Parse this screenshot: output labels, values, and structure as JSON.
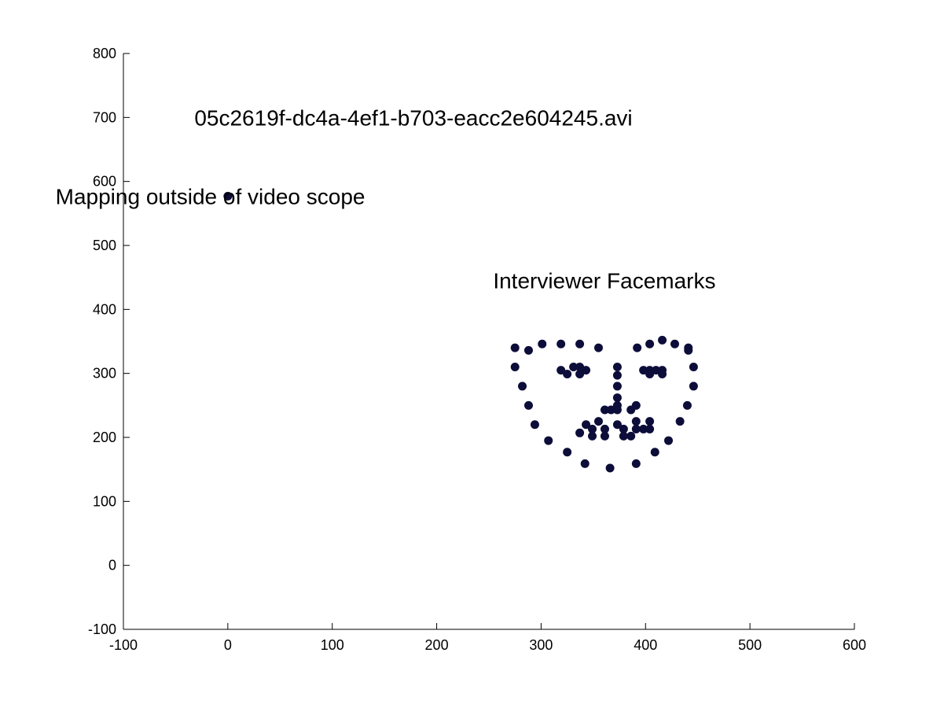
{
  "chart_data": {
    "type": "scatter",
    "title": "",
    "xlabel": "",
    "ylabel": "",
    "xlim": [
      -100,
      600
    ],
    "ylim": [
      -100,
      800
    ],
    "xticks": [
      -100,
      0,
      100,
      200,
      300,
      400,
      500,
      600
    ],
    "yticks": [
      -100,
      0,
      100,
      200,
      300,
      400,
      500,
      600,
      700,
      800
    ],
    "grid": false,
    "box": "left-bottom",
    "colors": {
      "marker": "#0d0d3a",
      "axis": "#000000",
      "background": "#ffffff"
    },
    "annotations": [
      {
        "key": "filename",
        "text": "05c2619f-dc4a-4ef1-b703-eacc2e604245.avi",
        "x": -32,
        "y": 700
      },
      {
        "key": "outside",
        "text": "Mapping outside of video scope",
        "x": -165,
        "y": 577
      },
      {
        "key": "facemarks",
        "text": "Interviewer Facemarks",
        "x": 254,
        "y": 445
      }
    ],
    "series": [
      {
        "points": [
          [
            0,
            577
          ],
          [
            275,
            340
          ],
          [
            275,
            310
          ],
          [
            282,
            280
          ],
          [
            288,
            250
          ],
          [
            294,
            220
          ],
          [
            307,
            195
          ],
          [
            325,
            177
          ],
          [
            342,
            159
          ],
          [
            366,
            152
          ],
          [
            391,
            159
          ],
          [
            409,
            177
          ],
          [
            422,
            195
          ],
          [
            433,
            225
          ],
          [
            440,
            250
          ],
          [
            446,
            280
          ],
          [
            446,
            310
          ],
          [
            441,
            340
          ],
          [
            288,
            336
          ],
          [
            301,
            346
          ],
          [
            319,
            346
          ],
          [
            337,
            346
          ],
          [
            355,
            340
          ],
          [
            392,
            340
          ],
          [
            404,
            346
          ],
          [
            416,
            352
          ],
          [
            428,
            346
          ],
          [
            441,
            336
          ],
          [
            373,
            310
          ],
          [
            373,
            297
          ],
          [
            373,
            280
          ],
          [
            373,
            262
          ],
          [
            373,
            250
          ],
          [
            361,
            243
          ],
          [
            367,
            243
          ],
          [
            373,
            243
          ],
          [
            386,
            243
          ],
          [
            391,
            250
          ],
          [
            319,
            305
          ],
          [
            331,
            310
          ],
          [
            337,
            310
          ],
          [
            343,
            305
          ],
          [
            337,
            299
          ],
          [
            325,
            299
          ],
          [
            398,
            305
          ],
          [
            404,
            305
          ],
          [
            410,
            305
          ],
          [
            416,
            305
          ],
          [
            416,
            299
          ],
          [
            404,
            299
          ],
          [
            343,
            220
          ],
          [
            349,
            213
          ],
          [
            355,
            225
          ],
          [
            361,
            213
          ],
          [
            373,
            220
          ],
          [
            379,
            213
          ],
          [
            391,
            225
          ],
          [
            398,
            213
          ],
          [
            404,
            225
          ],
          [
            391,
            213
          ],
          [
            404,
            213
          ],
          [
            386,
            202
          ],
          [
            379,
            202
          ],
          [
            361,
            202
          ],
          [
            349,
            202
          ],
          [
            337,
            207
          ]
        ]
      }
    ]
  }
}
